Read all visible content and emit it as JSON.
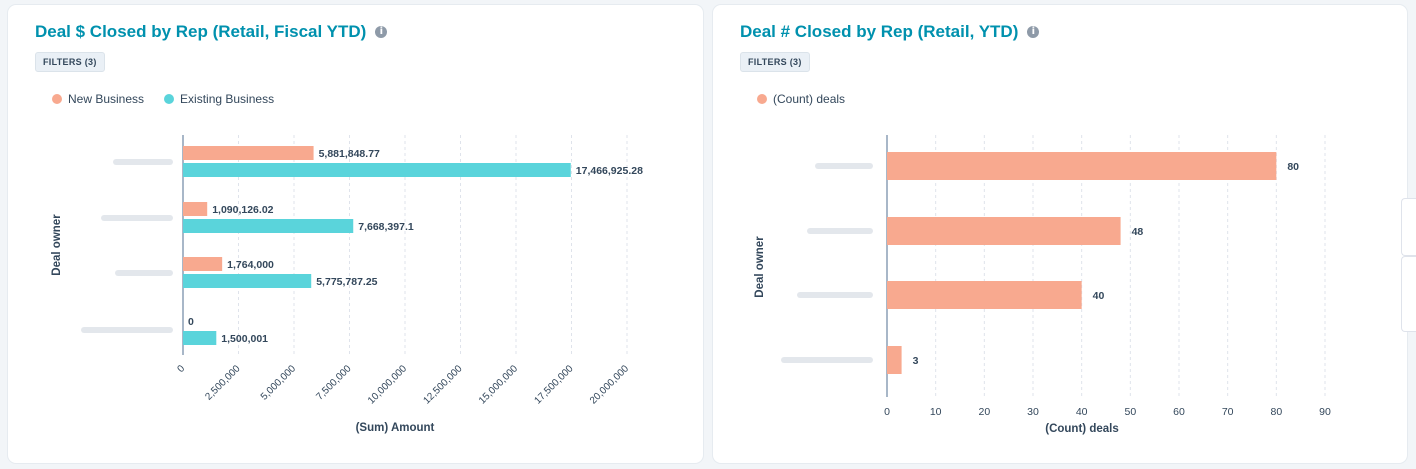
{
  "colors": {
    "new_business": "#f8a98f",
    "existing_business": "#5ad4db",
    "count_deals": "#f8a98f"
  },
  "left_panel": {
    "title": "Deal $ Closed by Rep (Retail, Fiscal YTD)",
    "filters_label": "FILTERS (3)",
    "legend": [
      "New Business",
      "Existing Business"
    ]
  },
  "right_panel": {
    "title": "Deal # Closed by Rep (Retail, YTD)",
    "filters_label": "FILTERS (3)",
    "legend": [
      "(Count) deals"
    ]
  },
  "info_icon": "info-icon",
  "chart_data": [
    {
      "type": "bar",
      "orientation": "horizontal",
      "title": "Deal $ Closed by Rep (Retail, Fiscal YTD)",
      "xlabel": "(Sum) Amount",
      "ylabel": "Deal owner",
      "categories": [
        "",
        "",
        "",
        ""
      ],
      "series": [
        {
          "name": "New Business",
          "values": [
            5881848.77,
            1090126.02,
            1764000,
            0
          ],
          "labels": [
            "5,881,848.77",
            "1,090,126.02",
            "1,764,000",
            "0"
          ]
        },
        {
          "name": "Existing Business",
          "values": [
            17466925.28,
            7668397.1,
            5775787.25,
            1500001
          ],
          "labels": [
            "17,466,925.28",
            "7,668,397.1",
            "5,775,787.25",
            "1,500,001"
          ]
        }
      ],
      "xlim": [
        0,
        20000000
      ],
      "xticks": [
        "0",
        "2,500,000",
        "5,000,000",
        "7,500,000",
        "10,000,000",
        "12,500,000",
        "15,000,000",
        "17,500,000",
        "20,000,000"
      ],
      "grid": true,
      "legend_position": "top-left"
    },
    {
      "type": "bar",
      "orientation": "horizontal",
      "title": "Deal # Closed by Rep (Retail, YTD)",
      "xlabel": "(Count) deals",
      "ylabel": "Deal owner",
      "categories": [
        "",
        "",
        "",
        ""
      ],
      "series": [
        {
          "name": "(Count) deals",
          "values": [
            80,
            48,
            40,
            3
          ],
          "labels": [
            "80",
            "48",
            "40",
            "3"
          ]
        }
      ],
      "xlim": [
        0,
        90
      ],
      "xticks": [
        "0",
        "10",
        "20",
        "30",
        "40",
        "50",
        "60",
        "70",
        "80",
        "90"
      ],
      "grid": true,
      "legend_position": "top-left"
    }
  ]
}
